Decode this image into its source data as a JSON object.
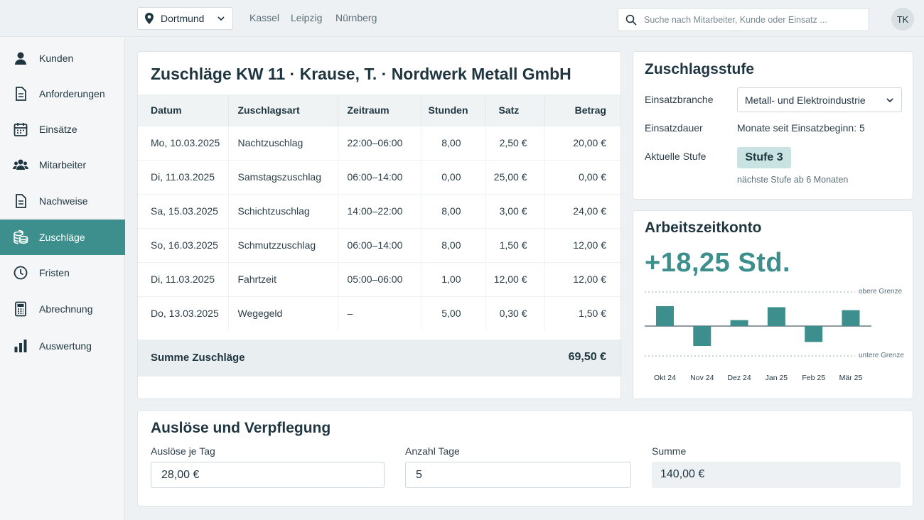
{
  "topbar": {
    "location": "Dortmund",
    "cities": [
      "Kassel",
      "Leipzig",
      "Nürnberg"
    ],
    "search_placeholder": "Suche nach Mitarbeiter, Kunde oder Einsatz ...",
    "avatar_initials": "TK"
  },
  "sidebar": {
    "items": [
      {
        "label": "Kunden",
        "icon": "person-icon",
        "active": false
      },
      {
        "label": "Anforderungen",
        "icon": "document-icon",
        "active": false
      },
      {
        "label": "Einsätze",
        "icon": "calendar-icon",
        "active": false
      },
      {
        "label": "Mitarbeiter",
        "icon": "people-icon",
        "active": false
      },
      {
        "label": "Nachweise",
        "icon": "document-icon",
        "active": false
      },
      {
        "label": "Zuschläge",
        "icon": "coins-icon",
        "active": true
      },
      {
        "label": "Fristen",
        "icon": "clock-icon",
        "active": false
      },
      {
        "label": "Abrechnung",
        "icon": "calculator-icon",
        "active": false
      },
      {
        "label": "Auswertung",
        "icon": "bar-chart-icon",
        "active": false
      }
    ]
  },
  "zuschlaege": {
    "title": "Zuschläge KW 11 · Krause, T. · Nordwerk Metall GmbH",
    "columns": [
      "Datum",
      "Zuschlagsart",
      "Zeitraum",
      "Stunden",
      "Satz",
      "Betrag"
    ],
    "rows": [
      [
        "Mo, 10.03.2025",
        "Nachtzuschlag",
        "22:00–06:00",
        "8,00",
        "2,50 €",
        "20,00 €"
      ],
      [
        "Di, 11.03.2025",
        "Samstagszuschlag",
        "06:00–14:00",
        "0,00",
        "25,00 €",
        "0,00 €"
      ],
      [
        "Sa, 15.03.2025",
        "Schichtzuschlag",
        "14:00–22:00",
        "8,00",
        "3,00 €",
        "24,00 €"
      ],
      [
        "So, 16.03.2025",
        "Schmutzzuschlag",
        "06:00–14:00",
        "8,00",
        "1,50 €",
        "12,00 €"
      ],
      [
        "Di, 11.03.2025",
        "Fahrtzeit",
        "05:00–06:00",
        "1,00",
        "12,00 €",
        "12,00 €"
      ],
      [
        "Do, 13.03.2025",
        "Wegegeld",
        "–",
        "5,00",
        "0,30 €",
        "1,50 €"
      ]
    ],
    "sum_label": "Summe Zuschläge",
    "sum_value": "69,50 €"
  },
  "stufe": {
    "title": "Zuschlagsstufe",
    "branche_label": "Einsatzbranche",
    "branche_value": "Metall- und Elektroindustrie",
    "dauer_label": "Einsatzdauer",
    "dauer_value": "Monate seit Einsatzbeginn: 5",
    "aktuell_label": "Aktuelle Stufe",
    "aktuell_value": "Stufe 3",
    "note": "nächste Stufe ab 6 Monaten"
  },
  "konto": {
    "title": "Arbeitszeitkonto",
    "value": "+18,25 Std.",
    "upper_label": "obere Grenze",
    "lower_label": "untere Grenze",
    "accent": "#3d8f8d"
  },
  "chart_data": {
    "type": "bar",
    "categories": [
      "Okt 24",
      "Nov 24",
      "Dez 24",
      "Jan 25",
      "Feb 25",
      "Mär 25"
    ],
    "values": [
      1.0,
      -1.0,
      0.3,
      0.95,
      -0.8,
      0.8
    ],
    "ylim": [
      -1.6,
      1.6
    ],
    "reference_lines": [
      "obere Grenze",
      "untere Grenze"
    ],
    "grid": false
  },
  "ausloese": {
    "title": "Auslöse und Verpflegung",
    "tag_label": "Auslöse je Tag",
    "tag_value": "28,00 €",
    "tage_label": "Anzahl Tage",
    "tage_value": "5",
    "summe_label": "Summe",
    "summe_value": "140,00 €"
  }
}
